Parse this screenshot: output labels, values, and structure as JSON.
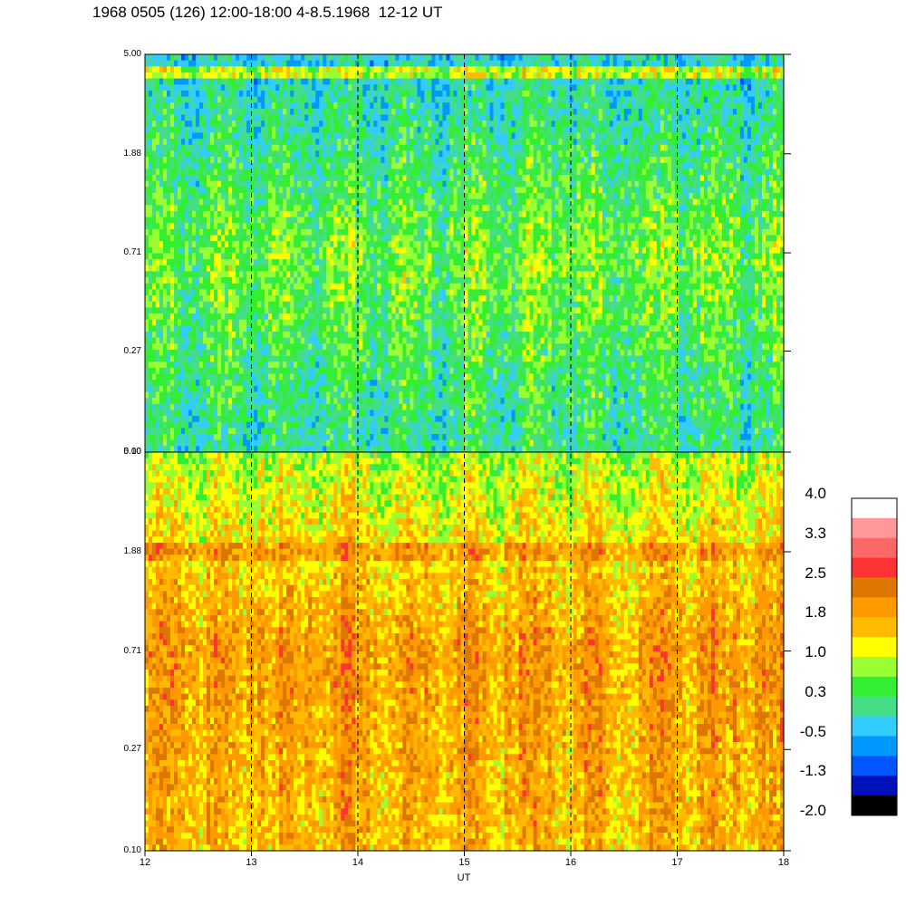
{
  "title": "1968 0505 (126) 12:00-18:00 4-8.5.1968  12-12 UT",
  "chart_data": [
    {
      "type": "heatmap",
      "panel": "upper",
      "x_range": [
        12,
        18
      ],
      "x_dashed_gridlines": [
        13,
        14,
        15,
        16,
        17
      ],
      "y_scale": "log",
      "y_ticks": [
        "0.10",
        "0.27",
        "0.71",
        "1.88",
        "5.00"
      ],
      "y_range": [
        0.1,
        5.0
      ],
      "dominant_levels": [
        "-0.5",
        "0.3",
        "1.0"
      ],
      "description_values": {
        "low_freq_level": 0.0,
        "mid_freq_level": 0.6,
        "high_freq_level": -0.3,
        "band_level_at_top": 1.0
      }
    },
    {
      "type": "heatmap",
      "panel": "lower",
      "x_range": [
        12,
        18
      ],
      "x_dashed_gridlines": [
        13,
        14,
        15,
        16,
        17
      ],
      "y_scale": "log",
      "y_ticks": [
        "0.10",
        "0.27",
        "0.71",
        "1.88",
        "5.00"
      ],
      "y_range": [
        0.1,
        5.0
      ],
      "dominant_levels": [
        "1.0",
        "1.8",
        "2.5"
      ],
      "description_values": {
        "low_freq_level": 1.7,
        "mid_freq_level": 2.0,
        "high_freq_level": 0.9,
        "band_level_at_1.88": 2.0
      }
    }
  ],
  "x_axis": {
    "label": "UT",
    "ticks": [
      "12",
      "13",
      "14",
      "15",
      "16",
      "17",
      "18"
    ]
  },
  "colorbar": {
    "labels": [
      "4.0",
      "3.3",
      "2.5",
      "1.8",
      "1.0",
      "0.3",
      "-0.5",
      "-1.3",
      "-2.0"
    ],
    "colors": [
      "#ffffff",
      "#ff9999",
      "#ff6666",
      "#ff3333",
      "#dd7700",
      "#ff9900",
      "#ffbb00",
      "#ffff00",
      "#99ff33",
      "#33ee33",
      "#44dd88",
      "#33ccff",
      "#0099ff",
      "#0055ff",
      "#0011bb",
      "#000000"
    ]
  }
}
